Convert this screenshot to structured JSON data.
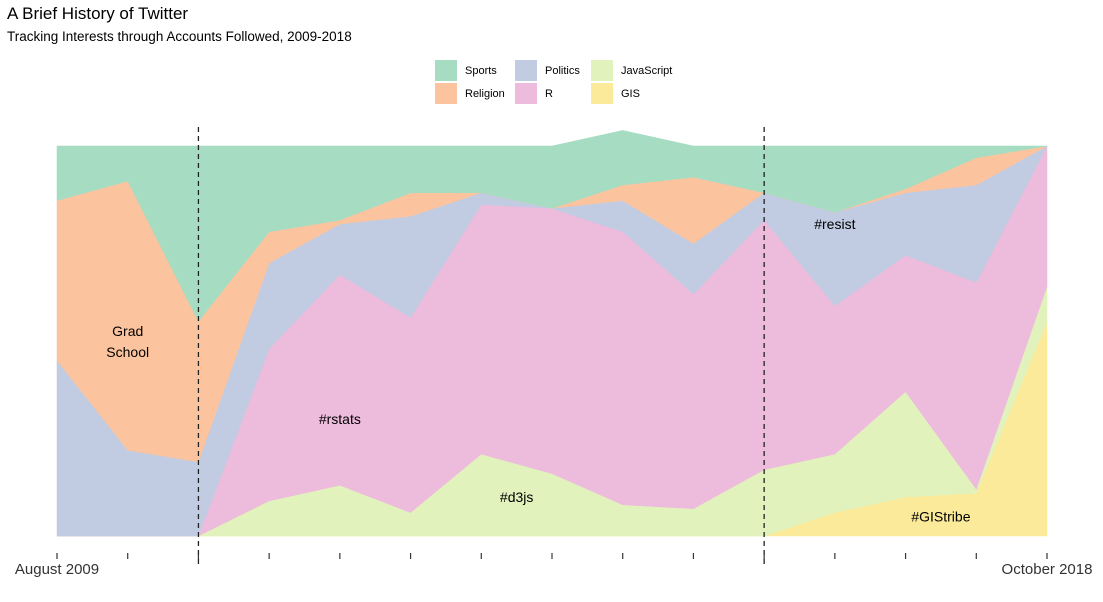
{
  "title": "A Brief History of Twitter",
  "subtitle": "Tracking Interests through Accounts Followed, 2009-2018",
  "colors": {
    "Sports": "#a6dcc2",
    "Religion": "#fbc49e",
    "Politics": "#c1cbe2",
    "R": "#edbbdc",
    "JavaScript": "#e1f2bc",
    "GIS": "#fcea9b"
  },
  "legend": [
    {
      "name": "Sports"
    },
    {
      "name": "Politics"
    },
    {
      "name": "JavaScript"
    },
    {
      "name": "Religion"
    },
    {
      "name": "R"
    },
    {
      "name": "GIS"
    }
  ],
  "chart_data": {
    "type": "area",
    "stacked": "fill",
    "ylim": [
      0,
      1
    ],
    "x_tick_labels": [
      "August 2009",
      "",
      "",
      "",
      "",
      "",
      "",
      "",
      "",
      "",
      "",
      "",
      "",
      "",
      "October 2018"
    ],
    "x": [
      0,
      1,
      2,
      3,
      4,
      5,
      6,
      7,
      8,
      9,
      10,
      11,
      12,
      13,
      14
    ],
    "series": [
      {
        "name": "GIS",
        "values": [
          0,
          0,
          0,
          0,
          0,
          0,
          0,
          0,
          0,
          0,
          0,
          0.06,
          0.1,
          0.11,
          0.55
        ]
      },
      {
        "name": "JavaScript",
        "values": [
          0,
          0,
          0,
          0.09,
          0.13,
          0.06,
          0.21,
          0.16,
          0.08,
          0.07,
          0.17,
          0.15,
          0.27,
          0.01,
          0.09
        ]
      },
      {
        "name": "R",
        "values": [
          0,
          0,
          0,
          0.39,
          0.54,
          0.5,
          0.64,
          0.68,
          0.7,
          0.55,
          0.64,
          0.38,
          0.35,
          0.53,
          0.36
        ]
      },
      {
        "name": "Politics",
        "values": [
          0.45,
          0.22,
          0.19,
          0.22,
          0.13,
          0.26,
          0.03,
          0,
          0.08,
          0.13,
          0.07,
          0.24,
          0.16,
          0.25,
          0
        ]
      },
      {
        "name": "Religion",
        "values": [
          0.41,
          0.69,
          0.36,
          0.08,
          0.01,
          0.06,
          0,
          0,
          0.04,
          0.17,
          0,
          0,
          0.01,
          0.07,
          0
        ]
      },
      {
        "name": "Sports",
        "values": [
          0.14,
          0.09,
          0.45,
          0.22,
          0.19,
          0.12,
          0.12,
          0.16,
          0.14,
          0.08,
          0.12,
          0.17,
          0.11,
          0.03,
          0
        ]
      }
    ],
    "annotations": [
      {
        "text": [
          "Grad",
          "School"
        ],
        "x": 1.0,
        "y": 0.5
      },
      {
        "text": [
          "#rstats"
        ],
        "x": 4.0,
        "y": 0.3
      },
      {
        "text": [
          "#d3js"
        ],
        "x": 6.5,
        "y": 0.1
      },
      {
        "text": [
          "#resist"
        ],
        "x": 11.0,
        "y": 0.8
      },
      {
        "text": [
          "#GIStribe"
        ],
        "x": 12.5,
        "y": 0.05
      }
    ],
    "vlines": [
      2,
      10
    ]
  }
}
